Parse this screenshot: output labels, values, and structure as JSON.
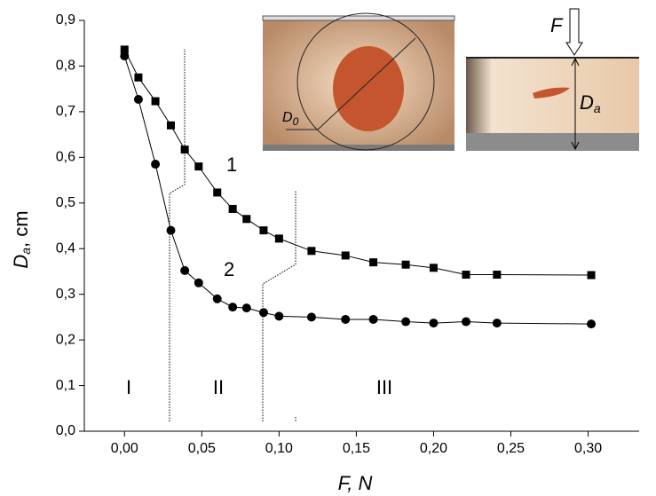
{
  "chart_data": {
    "type": "scatter-line",
    "xlabel": "F, N",
    "ylabel": {
      "main": "D",
      "sub": "a",
      "unit": ", cm"
    },
    "x": [
      0,
      0.009,
      0.02,
      0.03,
      0.039,
      0.048,
      0.06,
      0.07,
      0.079,
      0.09,
      0.1,
      0.121,
      0.143,
      0.161,
      0.182,
      0.2,
      0.221,
      0.241,
      0.302
    ],
    "series": [
      {
        "name": "1",
        "color": "#000000",
        "marker": "square",
        "values": [
          0.836,
          0.775,
          0.723,
          0.67,
          0.617,
          0.58,
          0.523,
          0.487,
          0.465,
          0.44,
          0.422,
          0.395,
          0.385,
          0.37,
          0.365,
          0.358,
          0.343,
          0.343,
          0.342
        ]
      },
      {
        "name": "2",
        "color": "#000000",
        "marker": "circle",
        "values": [
          0.822,
          0.727,
          0.585,
          0.44,
          0.352,
          0.325,
          0.29,
          0.272,
          0.27,
          0.26,
          0.252,
          0.25,
          0.245,
          0.245,
          0.24,
          0.237,
          0.24,
          0.237,
          0.235
        ]
      }
    ],
    "xlim": [
      -0.026,
      0.333
    ],
    "ylim": [
      0,
      0.9
    ],
    "xticks": [
      {
        "value": 0,
        "label": "0,00"
      },
      {
        "value": 0.05,
        "label": "0,05"
      },
      {
        "value": 0.1,
        "label": "0,10"
      },
      {
        "value": 0.15,
        "label": "0,15"
      },
      {
        "value": 0.2,
        "label": "0,20"
      },
      {
        "value": 0.25,
        "label": "0,25"
      },
      {
        "value": 0.3,
        "label": "0,30"
      }
    ],
    "yticks": [
      {
        "value": 0,
        "label": "0,0"
      },
      {
        "value": 0.1,
        "label": "0,1"
      },
      {
        "value": 0.2,
        "label": "0,2"
      },
      {
        "value": 0.3,
        "label": "0,3"
      },
      {
        "value": 0.4,
        "label": "0,4"
      },
      {
        "value": 0.5,
        "label": "0,5"
      },
      {
        "value": 0.6,
        "label": "0,6"
      },
      {
        "value": 0.7,
        "label": "0,7"
      },
      {
        "value": 0.8,
        "label": "0,8"
      },
      {
        "value": 0.9,
        "label": "0,9"
      }
    ],
    "regions": [
      "I",
      "II",
      "III"
    ],
    "inset_labels": {
      "force": "F",
      "d0": {
        "main": "D",
        "sub": "0"
      },
      "da": {
        "main": "D",
        "sub": "a"
      }
    }
  }
}
